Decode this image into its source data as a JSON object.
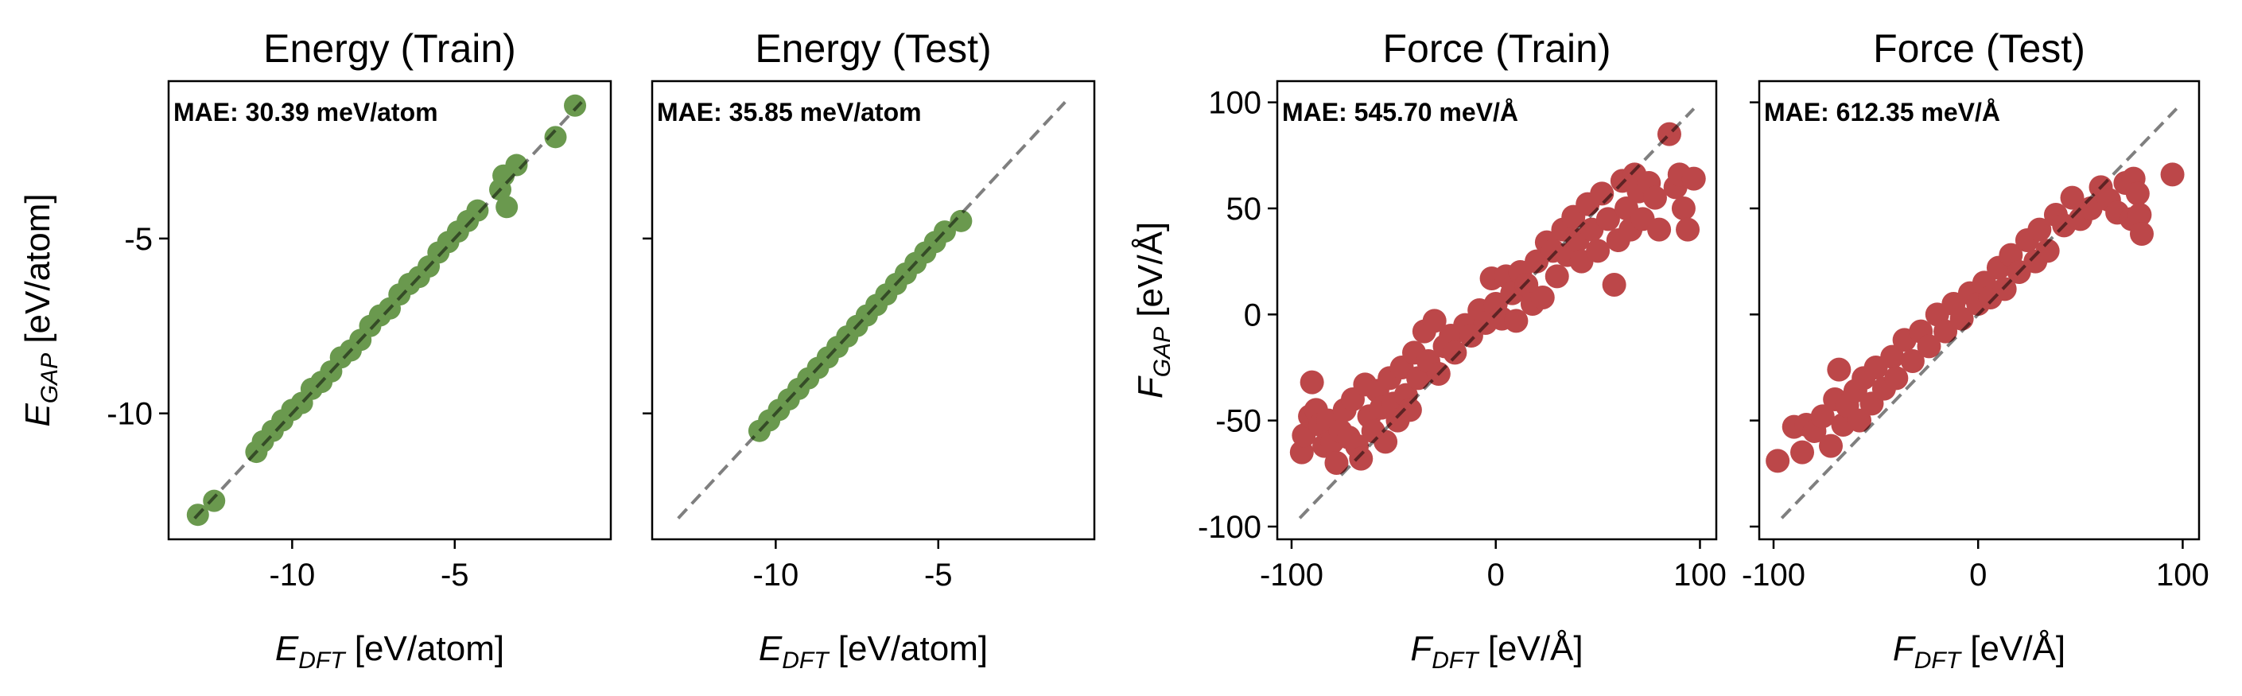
{
  "colors": {
    "energy": "#6a994e",
    "force": "#bc4749",
    "diagonal": "#808080"
  },
  "chart_data": [
    {
      "type": "scatter",
      "title": "Energy (Train)",
      "annotation": "MAE: 30.39 meV/atom",
      "xlabel": {
        "symbol": "E",
        "subscript": "DFT",
        "unit": " [eV/atom]"
      },
      "ylabel": {
        "symbol": "E",
        "subscript": "GAP",
        "unit": " [eV/atom]"
      },
      "xlim": [
        -13.8,
        -0.2
      ],
      "ylim": [
        -13.6,
        -0.5
      ],
      "xticks": [
        -10,
        -5
      ],
      "yticks": [
        -10,
        -5
      ],
      "show_yticklabels": true,
      "diagonal": [
        -13,
        -1.1
      ],
      "color_key": "energy",
      "points": [
        [
          -12.9,
          -12.9
        ],
        [
          -12.4,
          -12.5
        ],
        [
          -11.1,
          -11.1
        ],
        [
          -10.9,
          -10.8
        ],
        [
          -10.6,
          -10.5
        ],
        [
          -10.3,
          -10.2
        ],
        [
          -10,
          -9.9
        ],
        [
          -9.7,
          -9.7
        ],
        [
          -9.4,
          -9.3
        ],
        [
          -9.1,
          -9.1
        ],
        [
          -8.8,
          -8.8
        ],
        [
          -8.5,
          -8.4
        ],
        [
          -8.2,
          -8.2
        ],
        [
          -7.9,
          -7.9
        ],
        [
          -7.6,
          -7.5
        ],
        [
          -7.3,
          -7.2
        ],
        [
          -7,
          -7
        ],
        [
          -6.7,
          -6.6
        ],
        [
          -6.4,
          -6.3
        ],
        [
          -6.1,
          -6.1
        ],
        [
          -5.8,
          -5.8
        ],
        [
          -5.5,
          -5.4
        ],
        [
          -5.2,
          -5.1
        ],
        [
          -4.9,
          -4.8
        ],
        [
          -4.6,
          -4.5
        ],
        [
          -4.3,
          -4.2
        ],
        [
          -3.6,
          -3.6
        ],
        [
          -3.4,
          -4.1
        ],
        [
          -3.5,
          -3.2
        ],
        [
          -3.1,
          -2.9
        ],
        [
          -1.9,
          -2.1
        ],
        [
          -1.3,
          -1.2
        ]
      ]
    },
    {
      "type": "scatter",
      "title": "Energy (Test)",
      "annotation": "MAE: 35.85 meV/atom",
      "xlabel": {
        "symbol": "E",
        "subscript": "DFT",
        "unit": " [eV/atom]"
      },
      "ylabel": null,
      "xlim": [
        -13.8,
        -0.2
      ],
      "ylim": [
        -13.6,
        -0.5
      ],
      "xticks": [
        -10,
        -5
      ],
      "yticks": [
        -10,
        -5
      ],
      "show_yticklabels": false,
      "diagonal": [
        -13,
        -1.1
      ],
      "color_key": "energy",
      "points": [
        [
          -10.5,
          -10.5
        ],
        [
          -10.2,
          -10.2
        ],
        [
          -9.9,
          -9.9
        ],
        [
          -9.6,
          -9.6
        ],
        [
          -9.3,
          -9.3
        ],
        [
          -9,
          -9
        ],
        [
          -8.7,
          -8.7
        ],
        [
          -8.4,
          -8.4
        ],
        [
          -8.1,
          -8.1
        ],
        [
          -7.8,
          -7.8
        ],
        [
          -7.5,
          -7.5
        ],
        [
          -7.2,
          -7.2
        ],
        [
          -6.9,
          -6.9
        ],
        [
          -6.6,
          -6.6
        ],
        [
          -6.3,
          -6.3
        ],
        [
          -6,
          -6
        ],
        [
          -5.7,
          -5.7
        ],
        [
          -5.4,
          -5.4
        ],
        [
          -5.1,
          -5.1
        ],
        [
          -4.8,
          -4.8
        ],
        [
          -4.3,
          -4.5
        ]
      ]
    },
    {
      "type": "scatter",
      "title": "Force (Train)",
      "annotation": "MAE: 545.70 meV/Å",
      "xlabel": {
        "symbol": "F",
        "subscript": "DFT",
        "unit": " [eV/Å]"
      },
      "ylabel": {
        "symbol": "F",
        "subscript": "GAP",
        "unit": " [eV/Å]"
      },
      "xlim": [
        -107,
        108
      ],
      "ylim": [
        -106,
        110
      ],
      "xticks": [
        -100,
        0,
        100
      ],
      "yticks": [
        -100,
        -50,
        0,
        50,
        100
      ],
      "show_yticklabels": true,
      "diagonal": [
        -96,
        97
      ],
      "color_key": "force",
      "points": [
        [
          -95,
          -65
        ],
        [
          -94,
          -57
        ],
        [
          -91,
          -48
        ],
        [
          -90,
          -32
        ],
        [
          -88,
          -45
        ],
        [
          -86,
          -52
        ],
        [
          -84,
          -62
        ],
        [
          -82,
          -50
        ],
        [
          -80,
          -60
        ],
        [
          -78,
          -70
        ],
        [
          -76,
          -55
        ],
        [
          -74,
          -45
        ],
        [
          -72,
          -58
        ],
        [
          -70,
          -40
        ],
        [
          -68,
          -62
        ],
        [
          -66,
          -68
        ],
        [
          -64,
          -33
        ],
        [
          -62,
          -48
        ],
        [
          -60,
          -55
        ],
        [
          -58,
          -36
        ],
        [
          -56,
          -44
        ],
        [
          -54,
          -60
        ],
        [
          -52,
          -30
        ],
        [
          -50,
          -42
        ],
        [
          -48,
          -50
        ],
        [
          -46,
          -25
        ],
        [
          -44,
          -38
        ],
        [
          -42,
          -45
        ],
        [
          -40,
          -18
        ],
        [
          -38,
          -30
        ],
        [
          -35,
          -8
        ],
        [
          -33,
          -22
        ],
        [
          -30,
          -3
        ],
        [
          -28,
          -28
        ],
        [
          -25,
          -15
        ],
        [
          -22,
          -10
        ],
        [
          -20,
          -18
        ],
        [
          -15,
          -5
        ],
        [
          -12,
          -10
        ],
        [
          -8,
          2
        ],
        [
          -5,
          -4
        ],
        [
          -2,
          17
        ],
        [
          0,
          5
        ],
        [
          3,
          -2
        ],
        [
          5,
          18
        ],
        [
          8,
          10
        ],
        [
          10,
          -3
        ],
        [
          12,
          20
        ],
        [
          15,
          14
        ],
        [
          18,
          5
        ],
        [
          20,
          25
        ],
        [
          23,
          8
        ],
        [
          25,
          34
        ],
        [
          28,
          30
        ],
        [
          30,
          18
        ],
        [
          33,
          40
        ],
        [
          35,
          28
        ],
        [
          38,
          46
        ],
        [
          40,
          35
        ],
        [
          42,
          25
        ],
        [
          45,
          52
        ],
        [
          47,
          40
        ],
        [
          50,
          30
        ],
        [
          52,
          57
        ],
        [
          55,
          45
        ],
        [
          58,
          14
        ],
        [
          60,
          35
        ],
        [
          62,
          63
        ],
        [
          64,
          50
        ],
        [
          66,
          40
        ],
        [
          68,
          66
        ],
        [
          70,
          58
        ],
        [
          72,
          45
        ],
        [
          75,
          62
        ],
        [
          78,
          55
        ],
        [
          80,
          40
        ],
        [
          85,
          85
        ],
        [
          88,
          60
        ],
        [
          90,
          66
        ],
        [
          92,
          50
        ],
        [
          94,
          40
        ],
        [
          97,
          64
        ]
      ]
    },
    {
      "type": "scatter",
      "title": "Force (Test)",
      "annotation": "MAE: 612.35 meV/Å",
      "xlabel": {
        "symbol": "F",
        "subscript": "DFT",
        "unit": " [eV/Å]"
      },
      "ylabel": null,
      "xlim": [
        -107,
        108
      ],
      "ylim": [
        -106,
        110
      ],
      "xticks": [
        -100,
        0,
        100
      ],
      "yticks": [
        -100,
        -50,
        0,
        50,
        100
      ],
      "show_yticklabels": false,
      "diagonal": [
        -96,
        97
      ],
      "color_key": "force",
      "points": [
        [
          -98,
          -69
        ],
        [
          -90,
          -53
        ],
        [
          -86,
          -65
        ],
        [
          -84,
          -52
        ],
        [
          -80,
          -55
        ],
        [
          -76,
          -48
        ],
        [
          -72,
          -62
        ],
        [
          -70,
          -40
        ],
        [
          -68,
          -26
        ],
        [
          -66,
          -52
        ],
        [
          -64,
          -43
        ],
        [
          -60,
          -36
        ],
        [
          -58,
          -50
        ],
        [
          -56,
          -30
        ],
        [
          -52,
          -42
        ],
        [
          -50,
          -25
        ],
        [
          -46,
          -35
        ],
        [
          -42,
          -20
        ],
        [
          -40,
          -30
        ],
        [
          -36,
          -12
        ],
        [
          -32,
          -22
        ],
        [
          -28,
          -8
        ],
        [
          -24,
          -15
        ],
        [
          -20,
          0
        ],
        [
          -16,
          -8
        ],
        [
          -12,
          5
        ],
        [
          -8,
          -2
        ],
        [
          -4,
          10
        ],
        [
          0,
          5
        ],
        [
          3,
          15
        ],
        [
          6,
          8
        ],
        [
          10,
          22
        ],
        [
          13,
          12
        ],
        [
          16,
          28
        ],
        [
          20,
          20
        ],
        [
          24,
          35
        ],
        [
          28,
          25
        ],
        [
          30,
          40
        ],
        [
          34,
          30
        ],
        [
          38,
          47
        ],
        [
          42,
          42
        ],
        [
          46,
          55
        ],
        [
          50,
          45
        ],
        [
          55,
          50
        ],
        [
          60,
          60
        ],
        [
          64,
          54
        ],
        [
          68,
          48
        ],
        [
          72,
          62
        ],
        [
          75,
          45
        ],
        [
          76,
          64
        ],
        [
          78,
          57
        ],
        [
          79,
          47
        ],
        [
          80,
          38
        ],
        [
          95,
          66
        ]
      ]
    }
  ]
}
